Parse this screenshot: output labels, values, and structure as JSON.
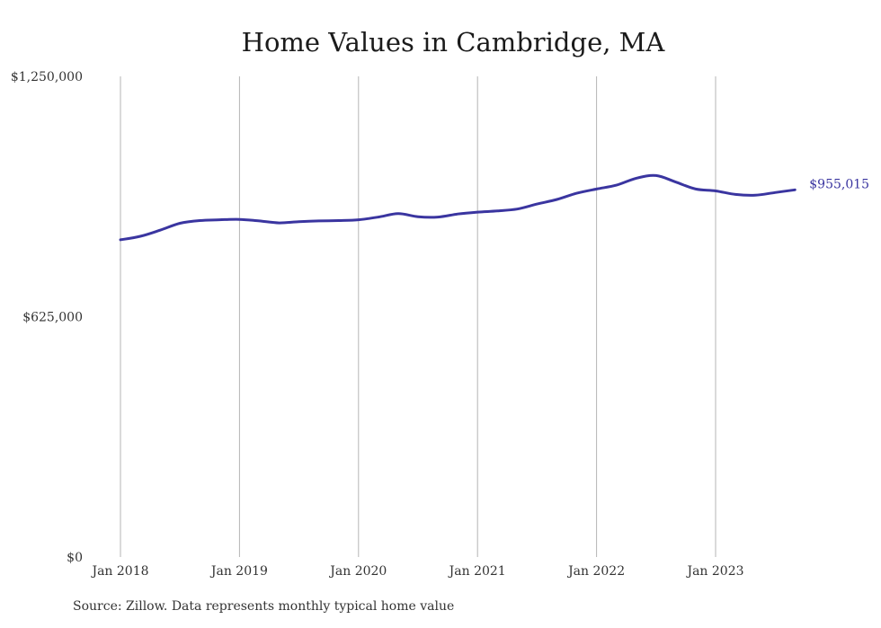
{
  "chart_data": {
    "type": "line",
    "title": "Home Values in Cambridge, MA",
    "xlabel": "",
    "ylabel": "",
    "ylim": [
      0,
      1250000
    ],
    "y_ticks": [
      {
        "value": 0,
        "label": "$0"
      },
      {
        "value": 625000,
        "label": "$625,000"
      },
      {
        "value": 1250000,
        "label": "$1,250,000"
      }
    ],
    "x_ticks": [
      {
        "value": "2018-01",
        "label": "Jan 2018"
      },
      {
        "value": "2019-01",
        "label": "Jan 2019"
      },
      {
        "value": "2020-01",
        "label": "Jan 2020"
      },
      {
        "value": "2021-01",
        "label": "Jan 2021"
      },
      {
        "value": "2022-01",
        "label": "Jan 2022"
      },
      {
        "value": "2023-01",
        "label": "Jan 2023"
      }
    ],
    "grid": "vertical",
    "legend": "none",
    "series": [
      {
        "color": "#3a35a0",
        "end_label": "$955,015",
        "points": [
          {
            "x": "2018-01",
            "y": 825000
          },
          {
            "x": "2018-03",
            "y": 834000
          },
          {
            "x": "2018-05",
            "y": 850000
          },
          {
            "x": "2018-07",
            "y": 868000
          },
          {
            "x": "2018-09",
            "y": 875000
          },
          {
            "x": "2018-11",
            "y": 877000
          },
          {
            "x": "2019-01",
            "y": 878000
          },
          {
            "x": "2019-03",
            "y": 874000
          },
          {
            "x": "2019-05",
            "y": 869000
          },
          {
            "x": "2019-07",
            "y": 872000
          },
          {
            "x": "2019-09",
            "y": 874000
          },
          {
            "x": "2019-11",
            "y": 875000
          },
          {
            "x": "2020-01",
            "y": 877000
          },
          {
            "x": "2020-03",
            "y": 884000
          },
          {
            "x": "2020-05",
            "y": 893000
          },
          {
            "x": "2020-07",
            "y": 885000
          },
          {
            "x": "2020-09",
            "y": 884000
          },
          {
            "x": "2020-11",
            "y": 892000
          },
          {
            "x": "2021-01",
            "y": 897000
          },
          {
            "x": "2021-03",
            "y": 900000
          },
          {
            "x": "2021-05",
            "y": 905000
          },
          {
            "x": "2021-07",
            "y": 918000
          },
          {
            "x": "2021-09",
            "y": 930000
          },
          {
            "x": "2021-11",
            "y": 946000
          },
          {
            "x": "2022-01",
            "y": 957000
          },
          {
            "x": "2022-03",
            "y": 967000
          },
          {
            "x": "2022-05",
            "y": 985000
          },
          {
            "x": "2022-07",
            "y": 992000
          },
          {
            "x": "2022-09",
            "y": 975000
          },
          {
            "x": "2022-11",
            "y": 957000
          },
          {
            "x": "2023-01",
            "y": 952000
          },
          {
            "x": "2023-03",
            "y": 943000
          },
          {
            "x": "2023-05",
            "y": 941000
          },
          {
            "x": "2023-07",
            "y": 948000
          },
          {
            "x": "2023-09",
            "y": 955015
          }
        ]
      }
    ]
  },
  "source": "Source: Zillow. Data represents monthly typical home value"
}
